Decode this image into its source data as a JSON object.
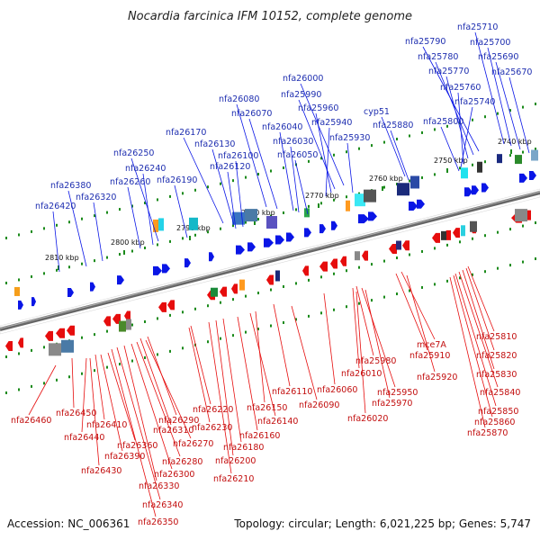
{
  "title": "Nocardia farcinica IFM 10152, complete genome",
  "accession": "Accession: NC_006361",
  "topology": "Topology: circular; Length: 6,021,225 bp; Genes: 5,747",
  "colors": {
    "forward": "#0a16e6",
    "reverse": "#e60d0d",
    "backbone": "#7a7a7a",
    "ticks": "#1a8a1a"
  },
  "kbp_labels": [
    "2740 kbp",
    "2750 kbp",
    "2760 kbp",
    "2770 kbp",
    "2780 kbp",
    "2790 kbp",
    "2800 kbp",
    "2810 kbp"
  ],
  "top_genes": [
    "nfa25710",
    "nfa25700",
    "nfa25690",
    "nfa25670",
    "nfa25790",
    "nfa25780",
    "nfa25770",
    "nfa25760",
    "nfa25740",
    "nfa25800",
    "nfa26000",
    "nfa25990",
    "nfa25960",
    "nfa25940",
    "nfa25930",
    "cyp51",
    "nfa25880",
    "nfa26080",
    "nfa26070",
    "nfa26040",
    "nfa26030",
    "nfa26050",
    "nfa26170",
    "nfa26130",
    "nfa26100",
    "nfa26120",
    "nfa26250",
    "nfa26240",
    "nfa26260",
    "nfa26190",
    "nfa26380",
    "nfa26320",
    "nfa26420"
  ],
  "bottom_genes": [
    "nfa25810",
    "nfa25820",
    "nfa25830",
    "nfa25840",
    "nfa25850",
    "nfa25860",
    "nfa25870",
    "mce7A",
    "nfa25910",
    "nfa25920",
    "nfa25980",
    "nfa26010",
    "nfa25950",
    "nfa25970",
    "nfa26020",
    "nfa26060",
    "nfa26110",
    "nfa26090",
    "nfa26150",
    "nfa26140",
    "nfa26160",
    "nfa26180",
    "nfa26200",
    "nfa26210",
    "nfa26220",
    "nfa26230",
    "nfa26290",
    "nfa26310",
    "nfa26270",
    "nfa26280",
    "nfa26300",
    "nfa26330",
    "nfa26340",
    "nfa26350",
    "nfa26450",
    "nfa26410",
    "nfa26440",
    "nfa26360",
    "nfa26390",
    "nfa26430",
    "nfa26460"
  ]
}
